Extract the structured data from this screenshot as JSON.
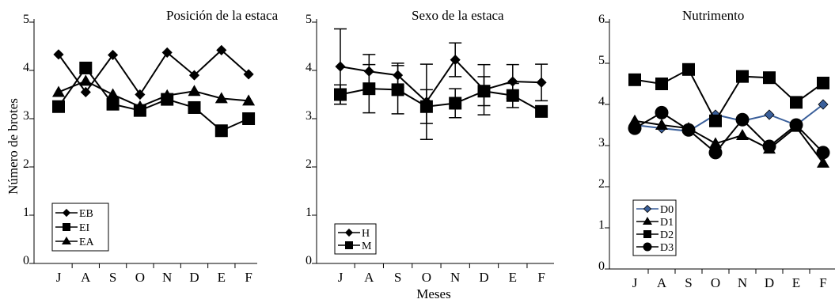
{
  "figure": {
    "ylabel": "Número de brotes",
    "xlabel": "Meses"
  },
  "chart_data": [
    {
      "type": "line",
      "title": "Posición de la estaca",
      "categories": [
        "J",
        "A",
        "S",
        "O",
        "N",
        "D",
        "E",
        "F"
      ],
      "ylim": [
        0,
        5
      ],
      "yticks": [
        0,
        1,
        2,
        3,
        4,
        5
      ],
      "legend_position": "bottom-left",
      "series": [
        {
          "name": "EB",
          "marker": "diamond",
          "values": [
            4.33,
            3.55,
            4.32,
            3.5,
            4.37,
            3.9,
            4.42,
            3.92
          ]
        },
        {
          "name": "EI",
          "marker": "square",
          "values": [
            3.25,
            4.05,
            3.3,
            3.17,
            3.4,
            3.23,
            2.75,
            3.0
          ]
        },
        {
          "name": "EA",
          "marker": "triangle",
          "values": [
            3.55,
            3.78,
            3.5,
            3.25,
            3.48,
            3.57,
            3.42,
            3.37
          ]
        }
      ]
    },
    {
      "type": "line",
      "title": "Sexo de la estaca",
      "categories": [
        "J",
        "A",
        "S",
        "O",
        "N",
        "D",
        "E",
        "F"
      ],
      "ylim": [
        0,
        5
      ],
      "yticks": [
        0,
        1,
        2,
        3,
        4,
        5
      ],
      "legend_position": "bottom-left",
      "error_bars": true,
      "series": [
        {
          "name": "H",
          "marker": "diamond",
          "values": [
            4.08,
            3.98,
            3.9,
            3.35,
            4.22,
            3.6,
            3.77,
            3.75
          ],
          "errors": [
            0.78,
            0.35,
            0.25,
            0.78,
            0.35,
            0.52,
            0.35,
            0.38
          ]
        },
        {
          "name": "M",
          "marker": "square",
          "values": [
            3.5,
            3.62,
            3.6,
            3.25,
            3.32,
            3.57,
            3.48,
            3.15
          ],
          "errors": [
            0.2,
            0.5,
            0.5,
            0.35,
            0.3,
            0.3,
            0.25,
            0.0
          ]
        }
      ]
    },
    {
      "type": "line",
      "title": "Nutrimento",
      "categories": [
        "J",
        "A",
        "S",
        "O",
        "N",
        "D",
        "E",
        "F"
      ],
      "ylim": [
        0,
        6
      ],
      "yticks": [
        0,
        1,
        2,
        3,
        4,
        5,
        6
      ],
      "legend_position": "bottom-left",
      "series": [
        {
          "name": "D0",
          "marker": "diamond",
          "values": [
            3.5,
            3.42,
            3.35,
            3.75,
            3.6,
            3.75,
            3.5,
            4.0
          ],
          "color": "#3a5f9a"
        },
        {
          "name": "D1",
          "marker": "triangle",
          "values": [
            3.6,
            3.5,
            3.42,
            3.05,
            3.25,
            2.92,
            3.45,
            2.58
          ]
        },
        {
          "name": "D2",
          "marker": "square",
          "values": [
            4.6,
            4.5,
            4.85,
            3.6,
            4.68,
            4.65,
            4.05,
            4.52
          ]
        },
        {
          "name": "D3",
          "marker": "circle",
          "values": [
            3.42,
            3.8,
            3.38,
            2.83,
            3.63,
            2.98,
            3.5,
            2.83
          ]
        }
      ]
    }
  ]
}
